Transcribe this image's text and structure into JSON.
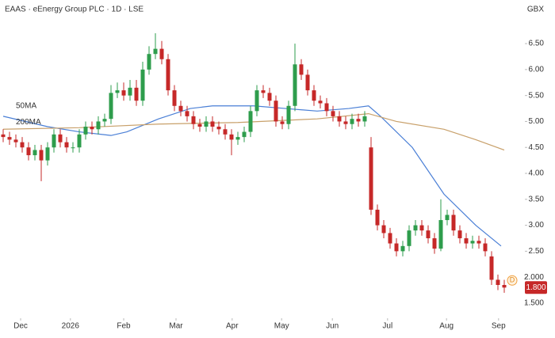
{
  "chart_data": {
    "type": "candlestick",
    "title": "EAAS · eEnergy Group PLC · 1D · LSE",
    "currency": "GBX",
    "x": [
      0,
      1,
      2,
      3,
      4,
      5,
      6,
      7,
      8,
      9,
      10,
      11,
      12,
      13,
      14,
      15,
      16,
      17,
      18,
      19,
      20,
      21,
      22,
      23,
      24,
      25,
      26,
      27,
      28,
      29,
      30,
      31,
      32,
      33,
      34,
      35,
      36,
      37,
      38,
      39,
      40,
      41,
      42,
      43,
      44,
      45,
      46,
      47,
      48,
      49,
      50,
      51,
      52,
      53,
      54,
      55,
      56,
      57,
      58,
      59,
      60,
      61,
      62,
      63,
      64,
      65,
      66,
      67,
      68,
      69,
      70,
      71,
      72,
      73,
      74,
      75,
      76,
      77,
      78,
      79
    ],
    "open": [
      4.75,
      4.7,
      4.65,
      4.6,
      4.5,
      4.35,
      4.45,
      4.25,
      4.5,
      4.75,
      4.6,
      4.5,
      4.5,
      4.75,
      4.9,
      4.85,
      5.0,
      5.05,
      5.55,
      5.6,
      5.5,
      5.65,
      5.4,
      6.0,
      6.3,
      6.4,
      6.2,
      5.6,
      5.3,
      5.2,
      5.1,
      4.95,
      4.9,
      5.0,
      4.9,
      4.85,
      4.75,
      4.65,
      4.7,
      4.8,
      5.2,
      5.6,
      5.55,
      5.4,
      5.0,
      4.95,
      5.3,
      6.1,
      5.9,
      5.6,
      5.4,
      5.35,
      5.2,
      5.1,
      5.0,
      4.95,
      5.05,
      5.0,
      4.5,
      3.3,
      3.0,
      2.85,
      2.65,
      2.5,
      2.6,
      2.9,
      3.0,
      2.9,
      2.75,
      2.55,
      3.1,
      3.2,
      2.9,
      2.75,
      2.65,
      2.7,
      2.65,
      2.4,
      1.95,
      1.85
    ],
    "high": [
      4.85,
      4.8,
      4.75,
      4.7,
      4.6,
      4.55,
      4.55,
      4.6,
      4.85,
      4.85,
      4.7,
      4.6,
      4.85,
      5.0,
      5.0,
      5.1,
      5.15,
      5.7,
      5.75,
      5.75,
      5.8,
      5.8,
      6.15,
      6.45,
      6.7,
      6.55,
      6.3,
      5.7,
      5.4,
      5.3,
      5.2,
      5.05,
      5.1,
      5.1,
      5.0,
      4.95,
      4.85,
      4.8,
      4.9,
      5.3,
      5.7,
      5.7,
      5.65,
      5.5,
      5.1,
      5.4,
      6.5,
      6.2,
      6.0,
      5.7,
      5.5,
      5.45,
      5.3,
      5.2,
      5.1,
      5.15,
      5.15,
      5.2,
      4.7,
      3.4,
      3.1,
      2.95,
      2.75,
      2.7,
      3.0,
      3.1,
      3.1,
      3.0,
      2.85,
      3.5,
      3.3,
      3.3,
      3.0,
      2.85,
      2.8,
      2.8,
      2.75,
      2.5,
      2.05,
      1.95
    ],
    "low": [
      4.6,
      4.55,
      4.5,
      4.4,
      4.25,
      4.25,
      3.85,
      4.15,
      4.4,
      4.5,
      4.4,
      4.4,
      4.4,
      4.65,
      4.75,
      4.75,
      4.9,
      4.95,
      5.45,
      5.4,
      5.4,
      5.3,
      5.3,
      5.9,
      6.2,
      6.1,
      5.5,
      5.2,
      5.1,
      5.0,
      4.85,
      4.8,
      4.8,
      4.8,
      4.75,
      4.65,
      4.35,
      4.55,
      4.6,
      4.7,
      5.1,
      5.45,
      5.3,
      4.9,
      4.85,
      4.85,
      5.2,
      5.8,
      5.5,
      5.3,
      5.25,
      5.1,
      5.0,
      4.9,
      4.85,
      4.85,
      4.9,
      4.9,
      3.2,
      2.9,
      2.75,
      2.55,
      2.4,
      2.4,
      2.5,
      2.8,
      2.8,
      2.65,
      2.45,
      2.5,
      3.0,
      2.8,
      2.65,
      2.55,
      2.55,
      2.55,
      2.4,
      1.85,
      1.75,
      1.7
    ],
    "close": [
      4.7,
      4.65,
      4.6,
      4.5,
      4.35,
      4.45,
      4.25,
      4.5,
      4.75,
      4.6,
      4.5,
      4.5,
      4.75,
      4.9,
      4.85,
      5.0,
      5.05,
      5.55,
      5.6,
      5.5,
      5.65,
      5.4,
      6.0,
      6.3,
      6.4,
      6.2,
      5.6,
      5.3,
      5.2,
      5.1,
      4.95,
      4.9,
      5.0,
      4.9,
      4.85,
      4.75,
      4.65,
      4.7,
      4.8,
      5.2,
      5.6,
      5.55,
      5.4,
      5.0,
      4.95,
      5.3,
      6.1,
      5.9,
      5.6,
      5.4,
      5.35,
      5.2,
      5.1,
      5.0,
      4.95,
      5.05,
      5.0,
      5.1,
      3.3,
      3.0,
      2.85,
      2.65,
      2.5,
      2.6,
      2.9,
      3.0,
      2.9,
      2.75,
      2.55,
      3.1,
      3.2,
      2.9,
      2.75,
      2.65,
      2.7,
      2.65,
      2.5,
      1.95,
      1.85,
      1.8
    ],
    "up_color": "#2e9d4c",
    "down_color": "#c62828",
    "lines": [
      {
        "name": "50MA",
        "color": "#4a7fd6",
        "x": [
          0,
          7,
          12,
          17,
          19.5,
          24.5,
          29.5,
          33,
          39.5,
          44.5,
          49.5,
          54.5,
          57.6,
          59.5,
          64.5,
          69.5,
          74.5,
          78.5
        ],
        "values": [
          5.1,
          4.9,
          4.8,
          4.73,
          4.8,
          5.05,
          5.25,
          5.3,
          5.3,
          5.25,
          5.2,
          5.25,
          5.3,
          5.1,
          4.5,
          3.6,
          3.0,
          2.6
        ]
      },
      {
        "name": "200MA",
        "color": "#c8a06a",
        "x": [
          0,
          12,
          24.5,
          37,
          49.5,
          57.6,
          62,
          69.5,
          74.5,
          79
        ],
        "values": [
          4.85,
          4.88,
          4.95,
          4.98,
          5.05,
          5.15,
          5.0,
          4.85,
          4.65,
          4.45
        ]
      }
    ],
    "last_price_label": "1.800",
    "marker": "D",
    "xlim": [
      -0.5,
      82
    ],
    "xticks": [
      {
        "value": 2.75,
        "label": "Dec"
      },
      {
        "value": 10.6,
        "label": "2026"
      },
      {
        "value": 19,
        "label": "Feb"
      },
      {
        "value": 27.25,
        "label": "Mar"
      },
      {
        "value": 36.1,
        "label": "Apr"
      },
      {
        "value": 43.9,
        "label": "May"
      },
      {
        "value": 51.9,
        "label": "Jun"
      },
      {
        "value": 60.6,
        "label": "Jul"
      },
      {
        "value": 69.9,
        "label": "Aug"
      },
      {
        "value": 78.1,
        "label": "Sep"
      }
    ],
    "ylim": [
      1.24,
      7.34
    ],
    "yticks": [
      {
        "value": 6.5,
        "label": "6.50"
      },
      {
        "value": 6,
        "label": "6.00"
      },
      {
        "value": 5.5,
        "label": "5.50"
      },
      {
        "value": 5,
        "label": "5.00"
      },
      {
        "value": 4.5,
        "label": "4.50"
      },
      {
        "value": 4,
        "label": "4.00"
      },
      {
        "value": 3.5,
        "label": "3.50"
      },
      {
        "value": 3,
        "label": "3.00"
      },
      {
        "value": 2.5,
        "label": "2.50"
      },
      {
        "value": 2,
        "label": "2.000"
      },
      {
        "value": 1.5,
        "label": "1.500"
      }
    ]
  }
}
